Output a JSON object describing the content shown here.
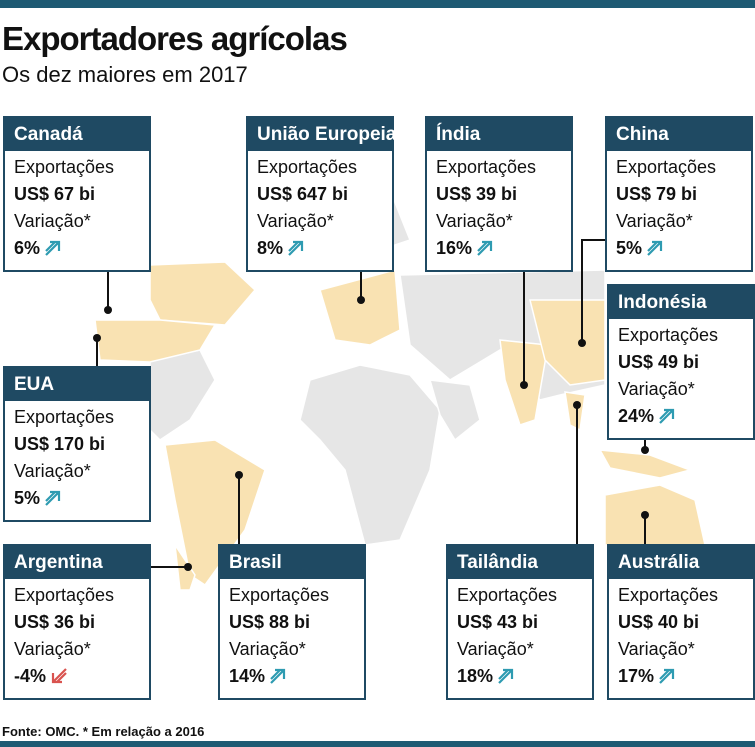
{
  "header": {
    "title": "Exportadores agrícolas",
    "subtitle": "Os dez maiores em 2017"
  },
  "countries": [
    {
      "name": "Canadá",
      "export_label": "Exportações",
      "export": "US$ 67 bi",
      "change_label": "Variação*",
      "change": "6%"
    },
    {
      "name": "União Europeia",
      "export_label": "Exportações",
      "export": "US$ 647 bi",
      "change_label": "Variação*",
      "change": "8%"
    },
    {
      "name": "Índia",
      "export_label": "Exportações",
      "export": "US$ 39 bi",
      "change_label": "Variação*",
      "change": "16%"
    },
    {
      "name": "China",
      "export_label": "Exportações",
      "export": "US$ 79 bi",
      "change_label": "Variação*",
      "change": "5%"
    },
    {
      "name": "Indonésia",
      "export_label": "Exportações",
      "export": "US$ 49 bi",
      "change_label": "Variação*",
      "change": "24%"
    },
    {
      "name": "EUA",
      "export_label": "Exportações",
      "export": "US$ 170 bi",
      "change_label": "Variação*",
      "change": "5%"
    },
    {
      "name": "Argentina",
      "export_label": "Exportações",
      "export": "US$ 36 bi",
      "change_label": "Variação*",
      "change": "-4%"
    },
    {
      "name": "Brasil",
      "export_label": "Exportações",
      "export": "US$ 88 bi",
      "change_label": "Variação*",
      "change": "14%"
    },
    {
      "name": "Tailândia",
      "export_label": "Exportações",
      "export": "US$ 43 bi",
      "change_label": "Variação*",
      "change": "18%"
    },
    {
      "name": "Austrália",
      "export_label": "Exportações",
      "export": "US$ 40 bi",
      "change_label": "Variação*",
      "change": "17%"
    }
  ],
  "footer": "Fonte: OMC. * Em relação a 2016"
}
